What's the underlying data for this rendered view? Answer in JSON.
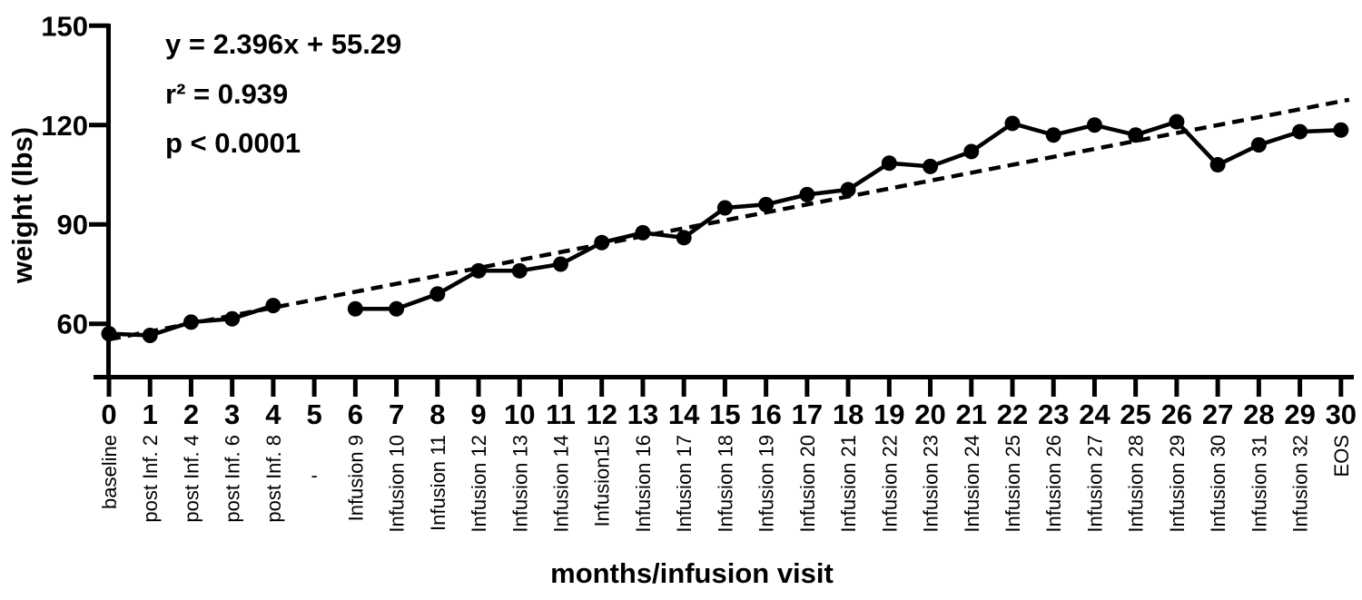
{
  "figure": {
    "background": "#ffffff",
    "ink": "#000000"
  },
  "stats_annotation": {
    "equation": "y = 2.396x + 55.29",
    "r_squared": "r² = 0.939",
    "p_value": "p < 0.0001"
  },
  "chart_data": {
    "type": "line",
    "title": "",
    "xlabel": "months/infusion visit",
    "ylabel": "weight (lbs)",
    "grid": false,
    "legend": "none",
    "x_tick_labels": [
      "0",
      "1",
      "2",
      "3",
      "4",
      "5",
      "6",
      "7",
      "8",
      "9",
      "10",
      "11",
      "12",
      "13",
      "14",
      "15",
      "16",
      "17",
      "18",
      "19",
      "20",
      "21",
      "22",
      "23",
      "24",
      "25",
      "26",
      "27",
      "28",
      "29",
      "30"
    ],
    "x_visit_labels": [
      "baseline",
      "post Inf. 2",
      "post Inf. 4",
      "post Inf. 6",
      "post Inf. 8",
      "-",
      "Infusion 9",
      "Infusion 10",
      "Infusion 11",
      "Infusion 12",
      "Infusion 13",
      "Infusion 14",
      "Infusion15",
      "Infusion 16",
      "Infusion 17",
      "Infusion 18",
      "Infusion 19",
      "Infusion 20",
      "Infusion 21",
      "Infusion 22",
      "Infusion 23",
      "Infusion 24",
      "Infusion 25",
      "Infusion 26",
      "Infusion 27",
      "Infusion 28",
      "Infusion 29",
      "Infusion 30",
      "Infusion 31",
      "Infusion 32",
      "EOS"
    ],
    "y_ticks": [
      60,
      90,
      120,
      150
    ],
    "ylim": [
      52,
      150
    ],
    "xlim": [
      -0.4,
      30.4
    ],
    "series": [
      {
        "name": "weight (lbs)",
        "type": "scatter-line",
        "marker": "filled-circle",
        "line_style": "solid",
        "color": "#000000",
        "values": [
          57,
          56.5,
          60.5,
          61.5,
          65.5,
          null,
          64.5,
          64.5,
          69,
          76,
          76,
          78,
          84.5,
          87.5,
          86,
          95,
          96,
          99,
          100.5,
          108.5,
          107.5,
          112,
          120.5,
          117,
          120,
          117,
          121,
          108,
          114,
          118,
          118.5
        ]
      },
      {
        "name": "linear regression fit",
        "type": "line",
        "line_style": "dashed",
        "color": "#000000",
        "slope": 2.396,
        "intercept": 55.29,
        "x_start": 0,
        "x_end": 30.2
      }
    ]
  }
}
